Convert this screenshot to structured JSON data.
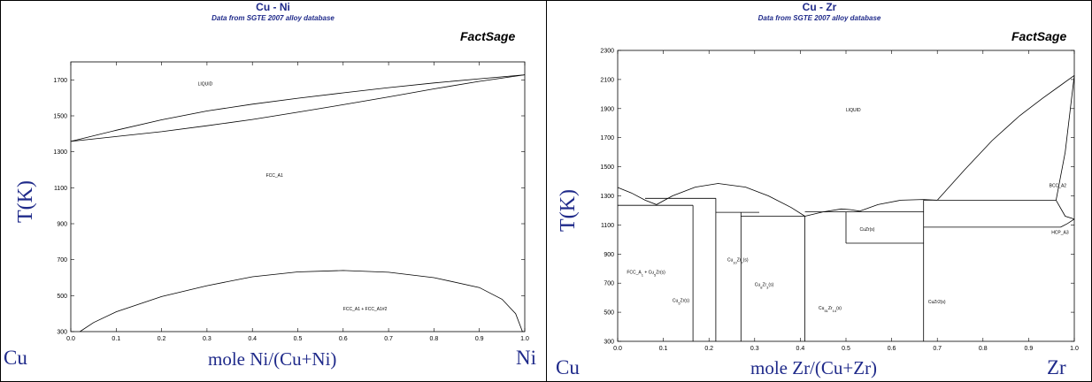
{
  "chart_data": [
    {
      "type": "line",
      "title": "Cu - Ni",
      "subtitle": "Data from SGTE 2007 alloy database",
      "brand": "FactSage",
      "ylabel": "T(K)",
      "xlabel": "mole Ni/(Cu+Ni)",
      "left_element": "Cu",
      "right_element": "Ni",
      "xlim": [
        0,
        1
      ],
      "ylim": [
        300,
        1800
      ],
      "xticks": [
        0,
        0.1,
        0.2,
        0.3,
        0.4,
        0.5,
        0.6,
        0.7,
        0.8,
        0.9,
        1
      ],
      "xtick_labels": [
        "0.0",
        "0.1",
        "0.2",
        "0.3",
        "0.4",
        "0.5",
        "0.6",
        "0.7",
        "0.8",
        "0.9",
        "1.0"
      ],
      "yticks": [
        300,
        500,
        700,
        900,
        1100,
        1300,
        1500,
        1700
      ],
      "grid": false,
      "series": [
        {
          "x": [
            0,
            0.1,
            0.2,
            0.3,
            0.4,
            0.5,
            0.6,
            0.7,
            0.8,
            0.9,
            1
          ],
          "y": [
            1358,
            1420,
            1478,
            1527,
            1565,
            1598,
            1628,
            1657,
            1683,
            1706,
            1728
          ]
        },
        {
          "x": [
            0,
            0.1,
            0.2,
            0.3,
            0.4,
            0.5,
            0.6,
            0.7,
            0.8,
            0.9,
            1
          ],
          "y": [
            1358,
            1385,
            1412,
            1445,
            1480,
            1520,
            1562,
            1605,
            1650,
            1692,
            1728
          ]
        },
        {
          "x": [
            0.02,
            0.05,
            0.1,
            0.2,
            0.3,
            0.4,
            0.5,
            0.6,
            0.7,
            0.8,
            0.9,
            0.95,
            0.98,
            0.995
          ],
          "y": [
            300,
            350,
            410,
            495,
            555,
            605,
            632,
            640,
            630,
            600,
            545,
            480,
            400,
            300
          ]
        }
      ],
      "annotations": [
        {
          "text": "LIQUID",
          "x": 0.28,
          "y": 1670
        },
        {
          "text": "FCC_A1",
          "x": 0.43,
          "y": 1160
        },
        {
          "text": "FCC_A1 + FCC_A1#2",
          "x": 0.6,
          "y": 418
        }
      ]
    },
    {
      "type": "line",
      "title": "Cu - Zr",
      "subtitle": "Data from SGTE 2007 alloy database",
      "brand": "FactSage",
      "ylabel": "T(K)",
      "xlabel": "mole Zr/(Cu+Zr)",
      "left_element": "Cu",
      "right_element": "Zr",
      "xlim": [
        0,
        1
      ],
      "ylim": [
        300,
        2300
      ],
      "xticks": [
        0,
        0.1,
        0.2,
        0.3,
        0.4,
        0.5,
        0.6,
        0.7,
        0.8,
        0.9,
        1
      ],
      "xtick_labels": [
        "0.0",
        "0.1",
        "0.2",
        "0.3",
        "0.4",
        "0.5",
        "0.6",
        "0.7",
        "0.8",
        "0.9",
        "1.0"
      ],
      "yticks": [
        300,
        500,
        700,
        900,
        1100,
        1300,
        1500,
        1700,
        1900,
        2100,
        2300
      ],
      "grid": false,
      "series": [
        {
          "x": [
            0,
            0.03,
            0.06,
            0.085,
            0.12,
            0.17,
            0.22,
            0.28,
            0.33,
            0.38,
            0.41
          ],
          "y": [
            1358,
            1320,
            1270,
            1240,
            1300,
            1360,
            1385,
            1360,
            1300,
            1220,
            1160
          ]
        },
        {
          "x": [
            0.41,
            0.45,
            0.49,
            0.51,
            0.53
          ],
          "y": [
            1160,
            1190,
            1210,
            1205,
            1195
          ]
        },
        {
          "x": [
            0.53,
            0.57,
            0.62,
            0.67,
            0.7
          ],
          "y": [
            1195,
            1240,
            1270,
            1275,
            1270
          ]
        },
        {
          "x": [
            0.7,
            0.76,
            0.82,
            0.88,
            0.93,
            0.97,
            1
          ],
          "y": [
            1270,
            1480,
            1680,
            1850,
            1970,
            2060,
            2128
          ]
        },
        {
          "x": [
            0.96,
            0.98,
            1
          ],
          "y": [
            1270,
            1600,
            2128
          ]
        },
        {
          "x": [
            0.96,
            0.98,
            1
          ],
          "y": [
            1270,
            1160,
            1140
          ]
        },
        {
          "x": [
            0.97,
            0.985,
            1
          ],
          "y": [
            1085,
            1110,
            1140
          ]
        },
        {
          "x": [
            0,
            0.165
          ],
          "y": [
            1235,
            1235
          ]
        },
        {
          "x": [
            0.165,
            0.165
          ],
          "y": [
            300,
            1235
          ]
        },
        {
          "x": [
            0.06,
            0.215
          ],
          "y": [
            1283,
            1283
          ]
        },
        {
          "x": [
            0.215,
            0.215
          ],
          "y": [
            300,
            1283
          ]
        },
        {
          "x": [
            0.215,
            0.31
          ],
          "y": [
            1187,
            1187
          ]
        },
        {
          "x": [
            0.27,
            0.27
          ],
          "y": [
            300,
            1187
          ]
        },
        {
          "x": [
            0.27,
            0.41
          ],
          "y": [
            1160,
            1160
          ]
        },
        {
          "x": [
            0.41,
            0.41
          ],
          "y": [
            300,
            1160
          ]
        },
        {
          "x": [
            0.41,
            0.67
          ],
          "y": [
            1190,
            1190
          ]
        },
        {
          "x": [
            0.5,
            0.5
          ],
          "y": [
            975,
            1190
          ]
        },
        {
          "x": [
            0.5,
            0.67
          ],
          "y": [
            975,
            975
          ]
        },
        {
          "x": [
            0.67,
            0.67
          ],
          "y": [
            300,
            1270
          ]
        },
        {
          "x": [
            0.67,
            0.96
          ],
          "y": [
            1270,
            1270
          ]
        },
        {
          "x": [
            0.67,
            0.97
          ],
          "y": [
            1085,
            1085
          ]
        }
      ],
      "annotations": [
        {
          "text": "LIQUID",
          "x": 0.5,
          "y": 1880
        },
        {
          "text": "BCC_A2",
          "x": 0.945,
          "y": 1360
        },
        {
          "text": "HCP_A3",
          "x": 0.95,
          "y": 1040
        },
        {
          "text": "CuZr(s)",
          "x": 0.53,
          "y": 1060
        },
        {
          "text": "FCC_A1 + Cu5Zr(s)",
          "x": 0.02,
          "y": 765
        },
        {
          "text": "Cu10Zr7(s)",
          "x": 0.24,
          "y": 850
        },
        {
          "text": "Cu8Zr3(s)",
          "x": 0.3,
          "y": 680
        },
        {
          "text": "Cu5Zr(s)",
          "x": 0.12,
          "y": 570
        },
        {
          "text": "Cu51Zr14(s)",
          "x": 0.44,
          "y": 520
        },
        {
          "text": "CuZr2(s)",
          "x": 0.68,
          "y": 560
        }
      ]
    }
  ]
}
